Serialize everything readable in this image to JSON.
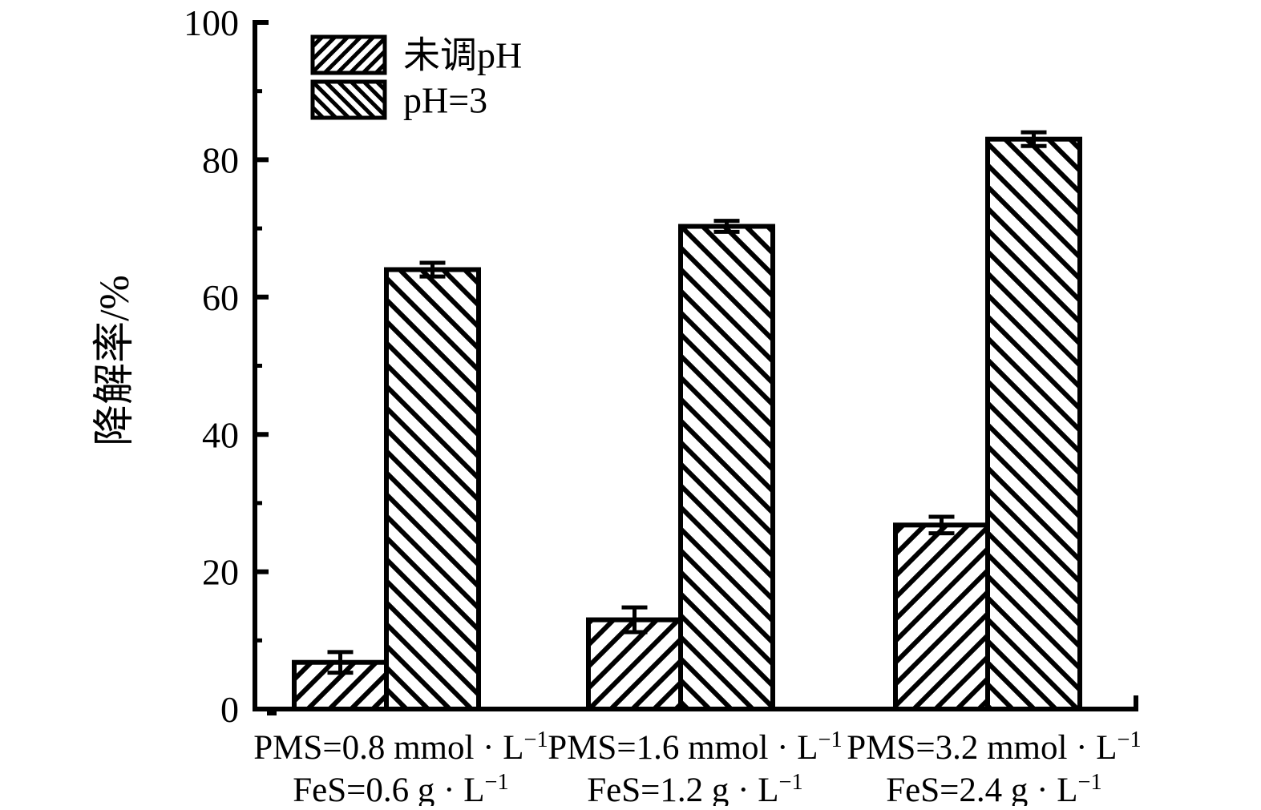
{
  "chart_data": {
    "type": "bar",
    "title": "",
    "xlabel": "",
    "ylabel": "降解率/%",
    "ylim": [
      0,
      100
    ],
    "yticks": [
      0,
      20,
      40,
      60,
      80,
      100
    ],
    "yminor_step": 10,
    "grid": false,
    "legend_position": "top-left",
    "background_color": "#ffffff",
    "bar_stroke_color": "#000000",
    "bar_fill_color": "#ffffff",
    "categories": [
      {
        "line1": "PMS=0.8 mmol · L⁻¹",
        "line2": "FeS=0.6 g · L⁻¹"
      },
      {
        "line1": "PMS=1.6 mmol · L⁻¹",
        "line2": "FeS=1.2 g · L⁻¹"
      },
      {
        "line1": "PMS=3.2 mmol · L⁻¹",
        "line2": "FeS=2.4 g · L⁻¹"
      }
    ],
    "series": [
      {
        "name": "未调pH",
        "hatch": "forward",
        "values": [
          6.8,
          13.0,
          26.8
        ],
        "errors": [
          1.5,
          1.8,
          1.2
        ]
      },
      {
        "name": "pH=3",
        "hatch": "back",
        "values": [
          64.0,
          70.3,
          83.0
        ],
        "errors": [
          1.0,
          0.8,
          1.0
        ]
      }
    ]
  }
}
